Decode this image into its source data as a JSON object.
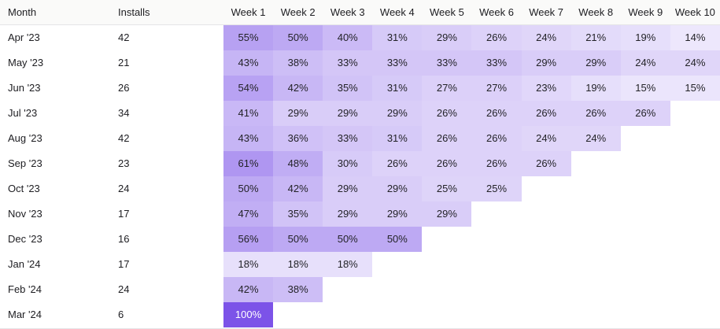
{
  "colors": {
    "accent": "#7C53E8",
    "header_bg": "#FAFAF9",
    "border": "#E5E5E7",
    "text": "#1D1D21",
    "cell_text_dark": "#232328",
    "cell_text_light": "#FFFFFF"
  },
  "chart_data": {
    "type": "heatmap",
    "row_header_labels": {
      "month": "Month",
      "installs": "Installs"
    },
    "week_columns": [
      "Week 1",
      "Week 2",
      "Week 3",
      "Week 4",
      "Week 5",
      "Week 6",
      "Week 7",
      "Week 8",
      "Week 9",
      "Week 10"
    ],
    "unit": "%",
    "color_scale": {
      "base": "#7C53E8",
      "mapping": "cell background = base color at opacity value/100 over white",
      "text_light_threshold": 80
    },
    "rows": [
      {
        "month": "Apr '23",
        "installs": 42,
        "retention_pct": [
          55,
          50,
          40,
          31,
          29,
          26,
          24,
          21,
          19,
          14
        ]
      },
      {
        "month": "May '23",
        "installs": 21,
        "retention_pct": [
          43,
          38,
          33,
          33,
          33,
          33,
          29,
          29,
          24,
          24
        ]
      },
      {
        "month": "Jun '23",
        "installs": 26,
        "retention_pct": [
          54,
          42,
          35,
          31,
          27,
          27,
          23,
          19,
          15,
          15
        ]
      },
      {
        "month": "Jul '23",
        "installs": 34,
        "retention_pct": [
          41,
          29,
          29,
          29,
          26,
          26,
          26,
          26,
          26
        ]
      },
      {
        "month": "Aug '23",
        "installs": 42,
        "retention_pct": [
          43,
          36,
          33,
          31,
          26,
          26,
          24,
          24
        ]
      },
      {
        "month": "Sep '23",
        "installs": 23,
        "retention_pct": [
          61,
          48,
          30,
          26,
          26,
          26,
          26
        ]
      },
      {
        "month": "Oct '23",
        "installs": 24,
        "retention_pct": [
          50,
          42,
          29,
          29,
          25,
          25
        ]
      },
      {
        "month": "Nov '23",
        "installs": 17,
        "retention_pct": [
          47,
          35,
          29,
          29,
          29
        ]
      },
      {
        "month": "Dec '23",
        "installs": 16,
        "retention_pct": [
          56,
          50,
          50,
          50
        ]
      },
      {
        "month": "Jan '24",
        "installs": 17,
        "retention_pct": [
          18,
          18,
          18
        ]
      },
      {
        "month": "Feb '24",
        "installs": 24,
        "retention_pct": [
          42,
          38
        ]
      },
      {
        "month": "Mar '24",
        "installs": 6,
        "retention_pct": [
          100
        ]
      }
    ]
  }
}
